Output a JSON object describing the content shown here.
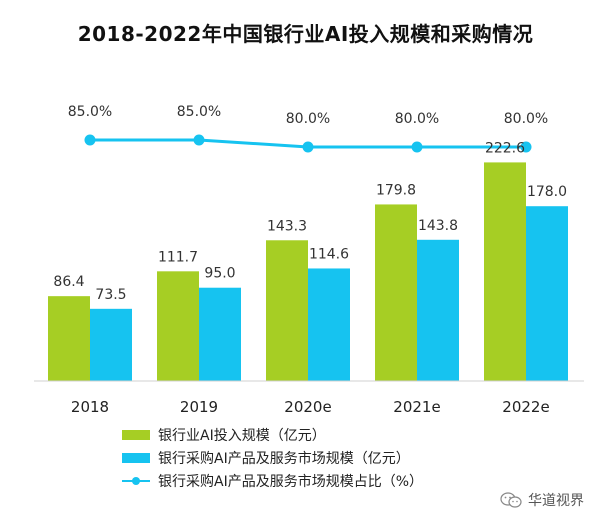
{
  "chart_data": {
    "type": "bar",
    "title": "2018-2022年中国银行业AI投入规模和采购情况",
    "categories": [
      "2018",
      "2019",
      "2020e",
      "2021e",
      "2022e"
    ],
    "series": [
      {
        "name": "银行业AI投入规模（亿元）",
        "type": "bar",
        "color": "#a6ce24",
        "values": [
          86.4,
          111.7,
          143.3,
          179.8,
          222.6
        ],
        "labels": [
          "86.4",
          "111.7",
          "143.3",
          "179.8",
          "222.6"
        ]
      },
      {
        "name": "银行采购AI产品及服务市场规模（亿元）",
        "type": "bar",
        "color": "#16c3f0",
        "values": [
          73.5,
          95.0,
          114.6,
          143.8,
          178.0
        ],
        "labels": [
          "73.5",
          "95.0",
          "114.6",
          "143.8",
          "178.0"
        ]
      },
      {
        "name": "银行采购AI产品及服务市场规模占比（%）",
        "type": "line",
        "color": "#16c3f0",
        "values": [
          85.0,
          85.0,
          80.0,
          80.0,
          80.0
        ],
        "labels": [
          "85.0%",
          "85.0%",
          "80.0%",
          "80.0%",
          "80.0%"
        ]
      }
    ],
    "ylim": [
      0,
      250
    ],
    "xlabel": "",
    "ylabel": "",
    "grid": false,
    "legend": "bottom"
  },
  "watermark": {
    "icon": "wechat-icon",
    "text": "华道视界"
  }
}
